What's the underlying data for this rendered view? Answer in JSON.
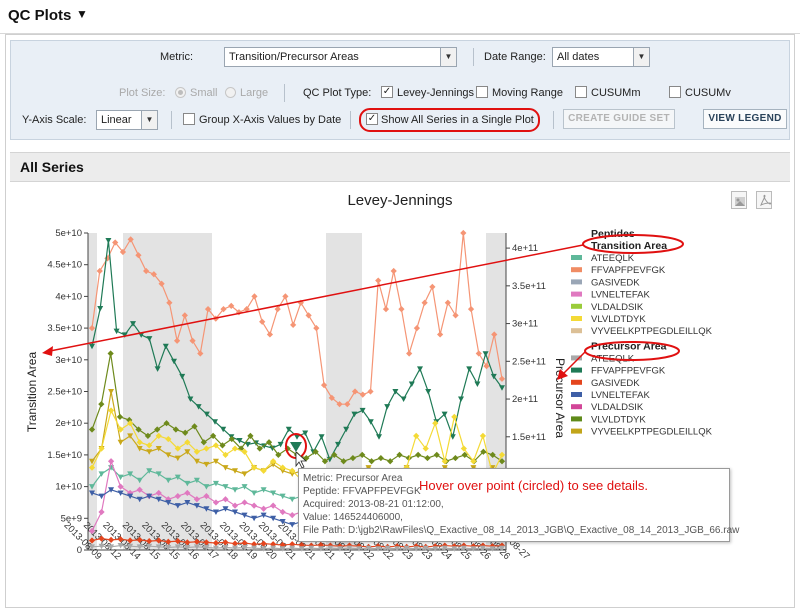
{
  "header": {
    "title": "QC Plots"
  },
  "controls": {
    "metric_label": "Metric:",
    "metric_value": "Transition/Precursor Areas",
    "date_range_label": "Date Range:",
    "date_range_value": "All dates",
    "plot_size_label": "Plot Size:",
    "plot_size_small": "Small",
    "plot_size_large": "Large",
    "plot_type_label": "QC Plot Type:",
    "plot_types": [
      "Levey-Jennings",
      "Moving Range",
      "CUSUMm",
      "CUSUMv"
    ],
    "yaxis_label": "Y-Axis Scale:",
    "yaxis_value": "Linear",
    "group_x_label": "Group X-Axis Values by Date",
    "show_all_label": "Show All Series in a Single Plot",
    "create_guide_set": "CREATE GUIDE SET",
    "view_legend": "VIEW LEGEND"
  },
  "section": {
    "title": "All Series"
  },
  "chart_data": {
    "type": "line",
    "title": "Levey-Jennings",
    "ylabel": "Transition Area",
    "y2label": "Precursor Area",
    "ylim": [
      0,
      50000000000
    ],
    "y2lim": [
      0,
      420000000000
    ],
    "yticks": [
      "0",
      "5e+9",
      "1e+10",
      "1.5e+10",
      "2e+10",
      "2.5e+10",
      "3e+10",
      "3.5e+10",
      "4e+10",
      "4.5e+10",
      "5e+10"
    ],
    "y2ticks": [
      "1.5e+11",
      "2e+11",
      "2.5e+11",
      "3e+11",
      "3.5e+11",
      "4e+11"
    ],
    "y2tick_values": [
      150000000000,
      200000000000,
      250000000000,
      300000000000,
      350000000000,
      400000000000
    ],
    "xticks": [
      "2013-08-09",
      "2013-08-12",
      "2013-08-14",
      "2013-08-15",
      "2013-08-15",
      "2013-08-16",
      "2013-08-17",
      "2013-08-18",
      "2013-08-19",
      "2013-08-20",
      "2013-08-21",
      "2013-08-21",
      "2013-08-21",
      "2013-08-21",
      "2013-08-22",
      "2013-08-22",
      "2013-08-23",
      "2013-08-23",
      "2013-08-24",
      "2013-08-25",
      "2013-08-26",
      "2013-08-26",
      "2013-08-27"
    ],
    "legend_placement": "right",
    "legend": {
      "title": "Peptides",
      "groups": [
        {
          "name": "Transition Area",
          "items": [
            {
              "label": "ATEEQLK",
              "color": "#5fb89a"
            },
            {
              "label": "FFVAPFPEVFGK",
              "color": "#f08c64"
            },
            {
              "label": "GASIVEDK",
              "color": "#9aa6b6"
            },
            {
              "label": "LVNELTEFAK",
              "color": "#e079c0"
            },
            {
              "label": "VLDALDSIK",
              "color": "#9acc3a"
            },
            {
              "label": "VLVLDTDYK",
              "color": "#f4da36"
            },
            {
              "label": "VYVEELKPTPEGDLEILLQK",
              "color": "#dcc096"
            }
          ]
        },
        {
          "name": "Precursor Area",
          "items": [
            {
              "label": "ATEEQLK",
              "color": "#a9a9a9"
            },
            {
              "label": "FFVAPFPEVFGK",
              "color": "#1f7a56"
            },
            {
              "label": "GASIVEDK",
              "color": "#e4451e"
            },
            {
              "label": "LVNELTEFAK",
              "color": "#3e5fa6"
            },
            {
              "label": "VLDALDSIK",
              "color": "#d24698"
            },
            {
              "label": "VLVLDTDYK",
              "color": "#5f8a1a"
            },
            {
              "label": "VYVEELKPTPEGDLEILLQK",
              "color": "#c2a51a"
            }
          ]
        }
      ]
    },
    "series": [
      {
        "axis": "left",
        "color": "#f59575",
        "values": [
          35000000000,
          44000000000,
          46000000000,
          48500000000,
          47000000000,
          49000000000,
          46500000000,
          44000000000,
          43500000000,
          42000000000,
          39000000000,
          33000000000,
          37000000000,
          33000000000,
          31000000000,
          38000000000,
          36500000000,
          38000000000,
          38500000000,
          37500000000,
          38000000000,
          40000000000,
          36000000000,
          34000000000,
          38000000000,
          40000000000,
          35500000000,
          39000000000,
          37000000000,
          35000000000,
          26000000000,
          24000000000,
          23000000000,
          23000000000,
          25000000000,
          24500000000,
          25000000000,
          42500000000,
          38000000000,
          44000000000,
          38000000000,
          31000000000,
          35000000000,
          39000000000,
          41500000000,
          34000000000,
          39000000000,
          37000000000,
          50000000000,
          38000000000,
          31000000000,
          29000000000,
          34000000000,
          27000000000
        ]
      },
      {
        "axis": "right",
        "color": "#1f7a56",
        "values": [
          270000000000,
          320000000000,
          410000000000,
          290000000000,
          285000000000,
          300000000000,
          285000000000,
          280000000000,
          240000000000,
          270000000000,
          250000000000,
          230000000000,
          200000000000,
          190000000000,
          180000000000,
          170000000000,
          160000000000,
          150000000000,
          145000000000,
          140000000000,
          142000000000,
          138000000000,
          135000000000,
          140000000000,
          160000000000,
          150000000000,
          155000000000,
          130000000000,
          150000000000,
          120000000000,
          140000000000,
          160000000000,
          180000000000,
          185000000000,
          170000000000,
          150000000000,
          190000000000,
          210000000000,
          200000000000,
          220000000000,
          240000000000,
          210000000000,
          170000000000,
          180000000000,
          150000000000,
          200000000000,
          240000000000,
          220000000000,
          260000000000,
          230000000000,
          215000000000
        ]
      },
      {
        "axis": "left",
        "color": "#6e8a1c",
        "values": [
          19000000000,
          23000000000,
          31000000000,
          21000000000,
          20500000000,
          19000000000,
          18000000000,
          19000000000,
          20000000000,
          19000000000,
          18500000000,
          19500000000,
          17000000000,
          18000000000,
          16500000000,
          17500000000,
          16000000000,
          18000000000,
          16000000000,
          17000000000,
          15000000000,
          16000000000,
          15000000000,
          14500000000,
          15500000000,
          14000000000,
          15000000000,
          14000000000,
          14500000000,
          15000000000,
          14000000000,
          14500000000,
          14000000000,
          15000000000,
          14500000000,
          15000000000,
          14500000000,
          15000000000,
          14000000000,
          14500000000,
          15000000000,
          14000000000,
          15500000000,
          15000000000,
          14000000000
        ]
      },
      {
        "axis": "left",
        "color": "#c9a81a",
        "values": [
          14000000000,
          16000000000,
          25000000000,
          17000000000,
          18000000000,
          16000000000,
          15500000000,
          16000000000,
          15000000000,
          14500000000,
          15500000000,
          14000000000,
          13500000000,
          14000000000,
          13000000000,
          12500000000,
          12000000000,
          13000000000,
          12500000000,
          13500000000,
          12500000000,
          12000000000,
          12500000000,
          12000000000,
          11500000000,
          12000000000,
          11500000000,
          12000000000,
          12500000000,
          13000000000,
          12500000000,
          12000000000,
          12500000000,
          13000000000,
          12000000000,
          12500000000,
          12000000000,
          13000000000,
          12500000000,
          12000000000,
          13000000000,
          12500000000,
          13000000000,
          12000000000
        ]
      },
      {
        "axis": "left",
        "color": "#f4da36",
        "values": [
          13000000000,
          16000000000,
          22000000000,
          19000000000,
          20000000000,
          17000000000,
          16500000000,
          18000000000,
          17500000000,
          16000000000,
          17000000000,
          15500000000,
          16000000000,
          16500000000,
          15000000000,
          16000000000,
          15500000000,
          13000000000,
          12500000000,
          14000000000,
          13000000000,
          12500000000,
          11000000000,
          10500000000,
          11500000000,
          9000000000,
          9500000000,
          8500000000,
          8000000000,
          8500000000,
          8000000000,
          7000000000,
          9000000000,
          13000000000,
          18000000000,
          16000000000,
          20000000000,
          14000000000,
          21000000000,
          16000000000,
          14000000000,
          18000000000,
          12000000000,
          15000000000
        ]
      },
      {
        "axis": "left",
        "color": "#5fb89a",
        "values": [
          10000000000,
          12000000000,
          13000000000,
          11500000000,
          12000000000,
          11000000000,
          12500000000,
          12000000000,
          11000000000,
          11500000000,
          10500000000,
          11000000000,
          10000000000,
          10500000000,
          10000000000,
          9500000000,
          10000000000,
          9000000000,
          9500000000,
          9000000000,
          8500000000,
          8000000000,
          8500000000,
          8000000000,
          7500000000,
          7000000000,
          8000000000,
          7500000000,
          7000000000,
          6500000000,
          7000000000,
          6500000000,
          6000000000,
          6500000000,
          7000000000,
          6500000000,
          6000000000,
          7000000000,
          6500000000,
          7000000000,
          6500000000,
          7000000000,
          6500000000,
          7000000000
        ]
      },
      {
        "axis": "left",
        "color": "#e079c0",
        "values": [
          3000000000,
          6000000000,
          14000000000,
          10000000000,
          9000000000,
          9500000000,
          8500000000,
          9000000000,
          8000000000,
          8500000000,
          9000000000,
          8000000000,
          8500000000,
          7500000000,
          8000000000,
          7000000000,
          7500000000,
          7000000000,
          6500000000,
          7000000000,
          6000000000,
          5500000000,
          6000000000,
          5000000000,
          4500000000,
          4000000000,
          4500000000,
          3500000000,
          3000000000,
          3500000000,
          3000000000,
          2500000000,
          3000000000,
          3500000000,
          3000000000,
          3500000000,
          4000000000,
          3500000000,
          4500000000,
          3500000000,
          3000000000,
          3500000000,
          4000000000,
          3500000000
        ]
      },
      {
        "axis": "left",
        "color": "#3e5fa6",
        "values": [
          9000000000,
          8500000000,
          9500000000,
          9000000000,
          8500000000,
          8000000000,
          8500000000,
          8000000000,
          7500000000,
          7000000000,
          7500000000,
          7000000000,
          6500000000,
          6000000000,
          6500000000,
          6000000000,
          5500000000,
          5000000000,
          5500000000,
          5000000000,
          4500000000,
          4000000000,
          4500000000,
          4000000000,
          3500000000,
          3000000000,
          3500000000,
          3000000000,
          2500000000,
          3000000000,
          2500000000,
          2000000000,
          2500000000,
          2000000000,
          2500000000,
          2000000000,
          2500000000,
          3000000000,
          2500000000,
          3000000000,
          2500000000,
          3000000000,
          2500000000,
          3000000000
        ]
      },
      {
        "axis": "left",
        "color": "#e4451e",
        "values": [
          1500000000,
          1800000000,
          1600000000,
          1700000000,
          1500000000,
          1600000000,
          1400000000,
          1500000000,
          1300000000,
          1400000000,
          1200000000,
          1300000000,
          1200000000,
          1100000000,
          1200000000,
          1000000000,
          1100000000,
          900000000,
          1000000000,
          900000000,
          800000000,
          900000000,
          800000000,
          700000000,
          800000000,
          700000000,
          600000000,
          700000000,
          600000000,
          500000000,
          600000000,
          500000000,
          600000000,
          500000000,
          600000000,
          500000000,
          600000000,
          700000000,
          600000000,
          700000000,
          600000000,
          700000000,
          600000000,
          700000000
        ]
      },
      {
        "axis": "left",
        "color": "#a9a9a9",
        "values": [
          500000000,
          600000000,
          500000000,
          700000000,
          600000000,
          500000000,
          600000000,
          500000000,
          400000000,
          500000000,
          400000000,
          500000000,
          400000000,
          300000000,
          400000000,
          300000000,
          400000000,
          300000000,
          200000000,
          300000000,
          200000000,
          300000000,
          200000000,
          300000000,
          200000000,
          300000000,
          200000000,
          300000000,
          200000000,
          300000000,
          200000000,
          300000000,
          200000000,
          300000000,
          200000000,
          300000000,
          200000000,
          300000000,
          200000000,
          300000000,
          200000000,
          300000000,
          200000000,
          300000000
        ]
      }
    ],
    "tooltip": {
      "metric": "Metric: Precursor Area",
      "peptide": "Peptide: FFVAPFPEVFGK",
      "acquired": "Acquired: 2013-08-21 01:12:00,",
      "value": "Value: 146524406000,",
      "file_path": "File Path: D:\\jgb2\\RawFiles\\Q_Exactive_08_14_2013_JGB\\Q_Exactive_08_14_2013_JGB_66.raw"
    },
    "annotation": "Hover over point (circled) to see details."
  }
}
